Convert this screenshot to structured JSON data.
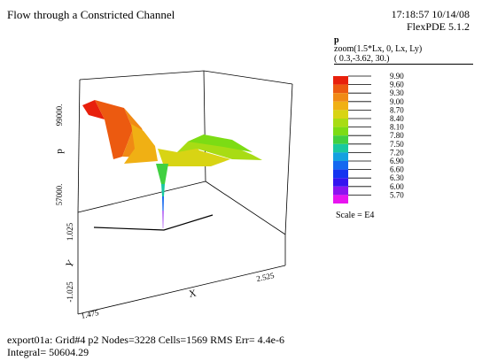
{
  "header": {
    "title": "Flow through a Constricted Channel",
    "timestamp": "17:18:57 10/14/08",
    "version": "FlexPDE 5.1.2"
  },
  "legend": {
    "variable": "p",
    "zoom": "zoom(1.5*Lx, 0, Lx, Ly)",
    "view": "( 0.3,-3.62, 30.)",
    "levels": [
      "9.90",
      "9.60",
      "9.30",
      "9.00",
      "8.70",
      "8.40",
      "8.10",
      "7.80",
      "7.50",
      "7.20",
      "6.90",
      "6.60",
      "6.30",
      "6.00",
      "5.70"
    ],
    "colors": [
      "#e8200c",
      "#ec5a10",
      "#f08a14",
      "#f0b014",
      "#d8d414",
      "#a8dc14",
      "#7cdc14",
      "#40d040",
      "#18c8a0",
      "#14a0e0",
      "#1468f0",
      "#1434f0",
      "#3414f0",
      "#8c14f0",
      "#e814f0"
    ],
    "scale_note": "Scale = E4"
  },
  "chart_data": {
    "type": "surface3d",
    "zlabel": "p",
    "xlabel": "X",
    "ylabel": "Y",
    "z_ticks": [
      "99000.",
      "57000."
    ],
    "y_ticks": [
      "1.025",
      "-1.025"
    ],
    "x_ticks": [
      "1.475",
      "2.525"
    ],
    "zlim": [
      57000,
      99000
    ],
    "value_range": [
      57000,
      99000
    ]
  },
  "footer": {
    "line1": "export01a:  Grid#4  p2  Nodes=3228 Cells=1569 RMS Err= 4.4e-6",
    "line2": "Integral=   50604.29"
  }
}
